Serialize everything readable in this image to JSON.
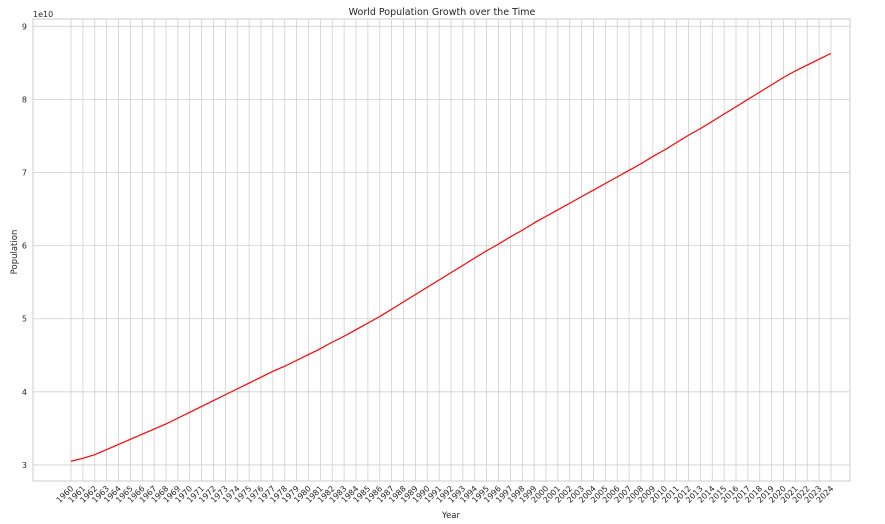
{
  "chart_data": {
    "type": "line",
    "title": "World Population Growth over the Time",
    "xlabel": "Year",
    "ylabel": "Population",
    "y_offset_label": "1e10",
    "y_scale_multiplier": 10000000000,
    "ylim": [
      2.78,
      9.1
    ],
    "y_ticks": [
      3,
      4,
      5,
      6,
      7,
      8,
      9
    ],
    "grid": true,
    "line_color": "#ff0000",
    "x": [
      "1960",
      "1961",
      "1962",
      "1963",
      "1964",
      "1965",
      "1966",
      "1967",
      "1968",
      "1969",
      "1970",
      "1971",
      "1972",
      "1973",
      "1974",
      "1975",
      "1976",
      "1977",
      "1978",
      "1979",
      "1980",
      "1981",
      "1982",
      "1983",
      "1984",
      "1985",
      "1986",
      "1987",
      "1988",
      "1989",
      "1990",
      "1991",
      "1992",
      "1993",
      "1994",
      "1995",
      "1996",
      "1997",
      "1998",
      "1999",
      "2000",
      "2001",
      "2002",
      "2003",
      "2004",
      "2005",
      "2006",
      "2007",
      "2008",
      "2009",
      "2010",
      "2011",
      "2012",
      "2013",
      "2014",
      "2015",
      "2016",
      "2017",
      "2018",
      "2019",
      "2020",
      "2021",
      "2022",
      "2023",
      "2024"
    ],
    "series": [
      {
        "values": [
          3.05,
          3.09,
          3.14,
          3.21,
          3.28,
          3.35,
          3.42,
          3.49,
          3.56,
          3.64,
          3.72,
          3.8,
          3.88,
          3.96,
          4.04,
          4.12,
          4.2,
          4.28,
          4.35,
          4.43,
          4.51,
          4.59,
          4.68,
          4.76,
          4.85,
          4.94,
          5.03,
          5.13,
          5.23,
          5.33,
          5.43,
          5.53,
          5.63,
          5.73,
          5.83,
          5.93,
          6.02,
          6.12,
          6.21,
          6.31,
          6.4,
          6.49,
          6.58,
          6.67,
          6.76,
          6.85,
          6.94,
          7.03,
          7.12,
          7.22,
          7.31,
          7.41,
          7.51,
          7.6,
          7.7,
          7.8,
          7.9,
          8.0,
          8.1,
          8.2,
          8.3,
          8.39,
          8.47,
          8.55,
          8.63
        ]
      }
    ]
  }
}
